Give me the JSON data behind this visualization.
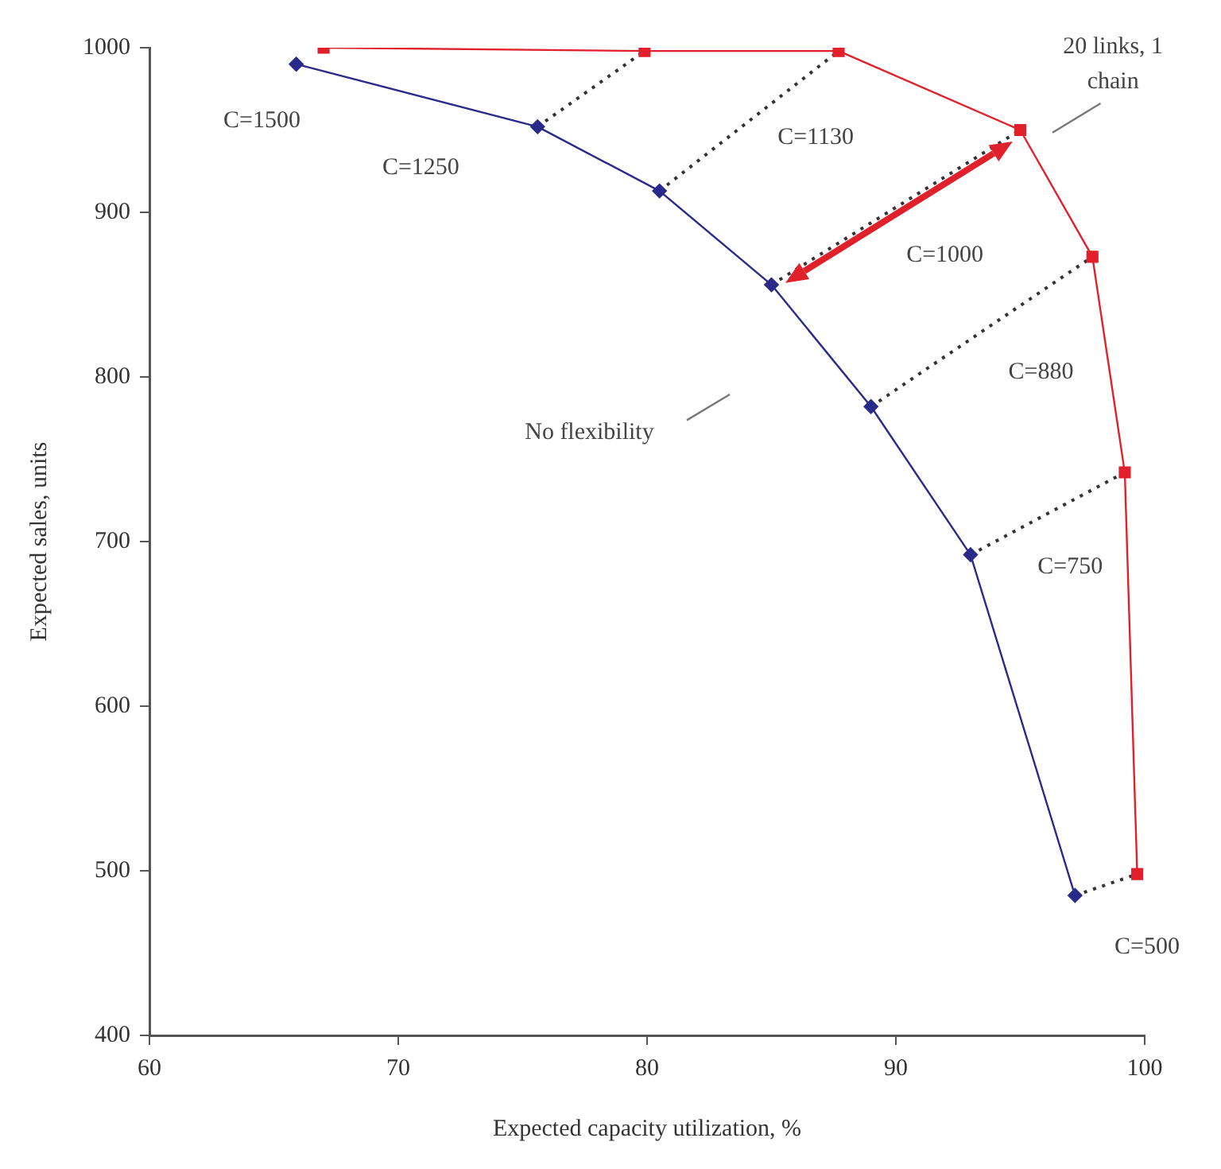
{
  "chart_data": {
    "type": "line",
    "xlabel": "Expected capacity utilization, %",
    "ylabel": "Expected sales, units",
    "xlim": [
      60,
      100
    ],
    "xticks": [
      60,
      70,
      80,
      90,
      100
    ],
    "ylim": [
      400,
      1000
    ],
    "yticks": [
      400,
      500,
      600,
      700,
      800,
      900,
      1000
    ],
    "grid": false,
    "legend": false,
    "series": [
      {
        "color": "#e0202a",
        "marker": "square",
        "line_style": "solid",
        "x": [
          67,
          79.9,
          87.7,
          95,
          97.9,
          99.2,
          99.7
        ],
        "values": [
          1000,
          998,
          998,
          950,
          873,
          742,
          498
        ]
      },
      {
        "color": "#2a2a8a",
        "marker": "diamond",
        "line_style": "solid",
        "x": [
          65.9,
          75.6,
          80.5,
          85,
          89,
          93,
          97.2
        ],
        "values": [
          990,
          952,
          913,
          856,
          782,
          692,
          485
        ]
      },
      {
        "color": "#333333",
        "marker": "none",
        "line_style": "dotted",
        "x": [
          75.6,
          79.9
        ],
        "values": [
          952,
          998
        ]
      },
      {
        "color": "#333333",
        "marker": "none",
        "line_style": "dotted",
        "x": [
          80.5,
          87.7
        ],
        "values": [
          913,
          998
        ]
      },
      {
        "color": "#333333",
        "marker": "none",
        "line_style": "dotted",
        "x": [
          85,
          95
        ],
        "values": [
          856,
          950
        ]
      },
      {
        "color": "#333333",
        "marker": "none",
        "line_style": "dotted",
        "x": [
          89,
          97.9
        ],
        "values": [
          782,
          873
        ]
      },
      {
        "color": "#333333",
        "marker": "none",
        "line_style": "dotted",
        "x": [
          93,
          99.2
        ],
        "values": [
          692,
          742
        ]
      },
      {
        "color": "#333333",
        "marker": "none",
        "line_style": "dotted",
        "x": [
          97.2,
          99.7
        ],
        "values": [
          485,
          498
        ]
      }
    ],
    "annotations": [
      "C=1500",
      "C=1250",
      "C=1130",
      "C=1000",
      "C=880",
      "C=750",
      "C=500",
      "No flexibility",
      "20 links, 1 chain"
    ]
  }
}
